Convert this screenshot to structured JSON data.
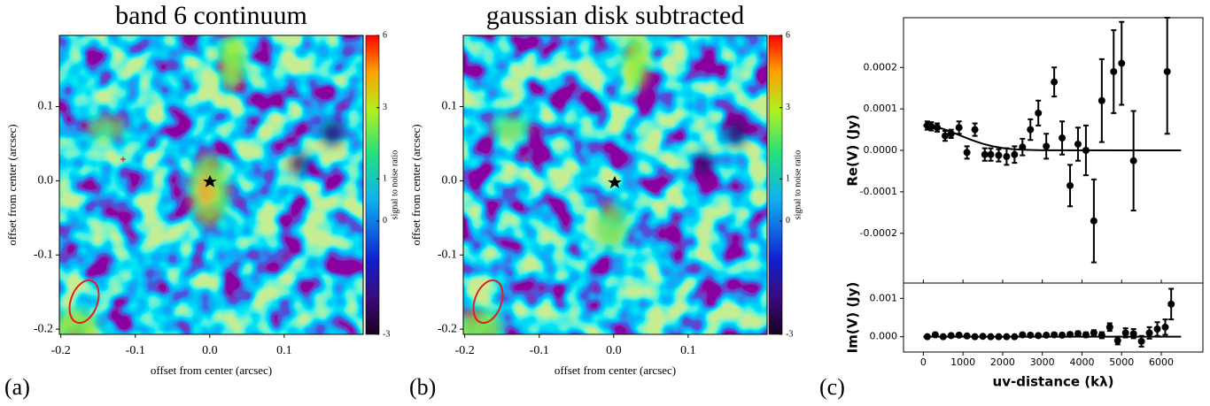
{
  "chart_data": [
    {
      "type": "heatmap",
      "title": "band 6 continuum",
      "panel_label": "(a)",
      "xlabel": "offset from center (arcsec)",
      "ylabel": "offset from center (arcsec)",
      "xlim": [
        -0.202,
        0.206
      ],
      "ylim": [
        -0.207,
        0.196
      ],
      "xticks": [
        -0.2,
        -0.1,
        {
          "value": 0,
          "label": "0.0"
        },
        0.1
      ],
      "yticks": [
        -0.2,
        -0.1,
        {
          "value": 0,
          "label": "0.0"
        },
        0.1
      ],
      "colorbar": {
        "label": "signal to noise ratio",
        "lim": [
          -3,
          6
        ],
        "ticks": [
          -3,
          0,
          1,
          3,
          6
        ],
        "scale": "asinh"
      }
    },
    {
      "type": "heatmap",
      "title": "gaussian disk subtracted",
      "panel_label": "(b)",
      "xlabel": "offset from center (arcsec)",
      "ylabel": "offset from center (arcsec)",
      "xlim": [
        -0.202,
        0.206
      ],
      "ylim": [
        -0.207,
        0.196
      ],
      "xticks": [
        -0.2,
        -0.1,
        {
          "value": 0,
          "label": "0.0"
        },
        0.1
      ],
      "yticks": [
        -0.2,
        -0.1,
        {
          "value": 0,
          "label": "0.0"
        },
        0.1
      ],
      "colorbar": {
        "label": "signal to noise ratio",
        "lim": [
          -3,
          6
        ],
        "ticks": [
          -3,
          0,
          1,
          3,
          6
        ],
        "scale": "asinh"
      }
    },
    {
      "type": "errorbar",
      "panel_label": "(c)",
      "ylabel": "Re(V) (Jy)",
      "xlim": [
        -500,
        7050
      ],
      "ylim": [
        -0.00032,
        0.00032
      ],
      "yticks": [
        -0.0002,
        -0.0001,
        {
          "value": 0,
          "label": "0.0000"
        },
        0.0001,
        0.0002
      ],
      "series": [
        {
          "style": "points",
          "color": "#000000",
          "x": [
            100,
            200,
            350,
            550,
            700,
            900,
            1100,
            1300,
            1550,
            1700,
            1900,
            2100,
            2300,
            2500,
            2700,
            2900,
            3100,
            3300,
            3500,
            3700,
            3900,
            4100,
            4300,
            4500,
            4800,
            5000,
            5300,
            6150
          ],
          "values": [
            6e-05,
            5.8e-05,
            5.5e-05,
            3.5e-05,
            4e-05,
            5.5e-05,
            -5e-06,
            5e-05,
            -1e-05,
            -1e-05,
            -1.2e-05,
            -1.5e-05,
            -1e-05,
            8e-06,
            5e-05,
            9e-05,
            1e-05,
            0.000165,
            3e-05,
            -8.5e-05,
            1.5e-05,
            0,
            -0.00017,
            0.00012,
            0.00019,
            0.00021,
            -2.5e-05,
            0.00019
          ],
          "errors": [
            1e-05,
            1e-05,
            1e-05,
            1.2e-05,
            1e-05,
            1.5e-05,
            1.5e-05,
            1.5e-05,
            1.5e-05,
            1.5e-05,
            1.5e-05,
            2e-05,
            2e-05,
            2e-05,
            2.5e-05,
            3e-05,
            3e-05,
            3.5e-05,
            4e-05,
            5e-05,
            4e-05,
            6e-05,
            0.0001,
            0.0001,
            0.0001,
            0.0001,
            0.00012,
            0.00015
          ]
        },
        {
          "style": "line",
          "color": "#000000",
          "x": [
            0,
            250,
            500,
            750,
            1000,
            1250,
            1500,
            1750,
            2000,
            2250,
            2500,
            2750,
            3000,
            6500
          ],
          "values": [
            6e-05,
            5.78e-05,
            5.18e-05,
            4.29e-05,
            3.33e-05,
            2.38e-05,
            1.58e-05,
            9.8e-06,
            5.6e-06,
            3e-06,
            1.5e-06,
            7e-07,
            3e-07,
            0
          ]
        }
      ]
    },
    {
      "type": "errorbar",
      "ylabel": "Im(V) (Jy)",
      "xlabel": "uv-distance (kλ)",
      "xlim": [
        -500,
        7050
      ],
      "ylim": [
        -0.0004,
        0.0014
      ],
      "xticks": [
        0,
        1000,
        2000,
        3000,
        4000,
        5000,
        6000
      ],
      "yticks": [
        {
          "value": 0,
          "label": "0.000"
        },
        0.001
      ],
      "series": [
        {
          "style": "points",
          "color": "#000000",
          "x": [
            100,
            300,
            500,
            700,
            900,
            1100,
            1300,
            1500,
            1700,
            1900,
            2100,
            2300,
            2500,
            2700,
            2900,
            3100,
            3300,
            3500,
            3700,
            3900,
            4100,
            4300,
            4500,
            4700,
            4900,
            5100,
            5300,
            5500,
            5700,
            5900,
            6100,
            6250
          ],
          "values": [
            0,
            5e-05,
            0,
            3e-05,
            4e-05,
            2e-05,
            0,
            1e-05,
            0,
            0,
            0,
            0,
            5e-05,
            4e-05,
            3e-05,
            4e-05,
            5e-05,
            4e-05,
            6e-05,
            8e-05,
            5e-05,
            0.0001,
            4e-05,
            0.00025,
            -0.0001,
            0.0001,
            8e-05,
            -0.00012,
            0.0001,
            0.0002,
            0.00025,
            0.00085
          ],
          "errors": [
            3e-05,
            3e-05,
            3e-05,
            3e-05,
            3e-05,
            3e-05,
            3e-05,
            3e-05,
            3e-05,
            3e-05,
            3e-05,
            3e-05,
            3e-05,
            4e-05,
            4e-05,
            4e-05,
            4e-05,
            5e-05,
            5e-05,
            6e-05,
            6e-05,
            7e-05,
            8e-05,
            0.0001,
            0.0001,
            0.00012,
            0.00012,
            0.00014,
            0.00015,
            0.00018,
            0.0002,
            0.0004
          ]
        },
        {
          "style": "line",
          "color": "#000000",
          "x": [
            0,
            6500
          ],
          "values": [
            0,
            0
          ]
        }
      ]
    }
  ]
}
